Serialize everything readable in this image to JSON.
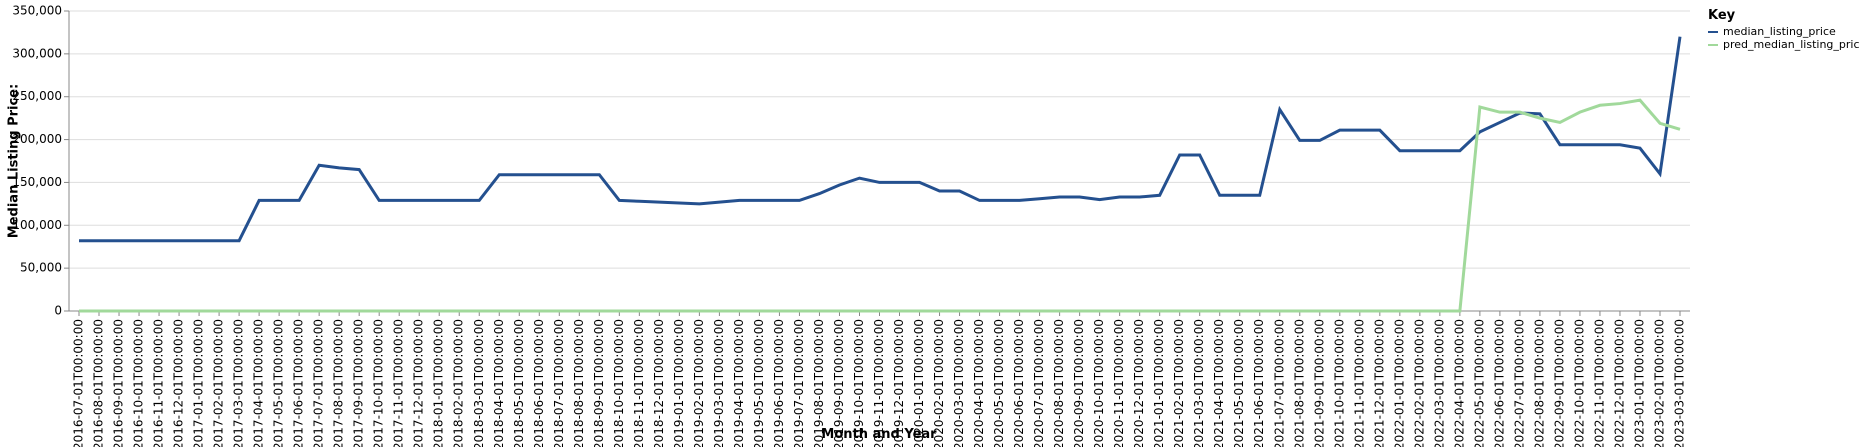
{
  "chart_data": {
    "type": "line",
    "x_label": "Month and Year",
    "y_label": "Median Listing Price:",
    "legend_title": "Key",
    "categories": [
      "2016-07-01T00:00:00",
      "2016-08-01T00:00:00",
      "2016-09-01T00:00:00",
      "2016-10-01T00:00:00",
      "2016-11-01T00:00:00",
      "2016-12-01T00:00:00",
      "2017-01-01T00:00:00",
      "2017-02-01T00:00:00",
      "2017-03-01T00:00:00",
      "2017-04-01T00:00:00",
      "2017-05-01T00:00:00",
      "2017-06-01T00:00:00",
      "2017-07-01T00:00:00",
      "2017-08-01T00:00:00",
      "2017-09-01T00:00:00",
      "2017-10-01T00:00:00",
      "2017-11-01T00:00:00",
      "2017-12-01T00:00:00",
      "2018-01-01T00:00:00",
      "2018-02-01T00:00:00",
      "2018-03-01T00:00:00",
      "2018-04-01T00:00:00",
      "2018-05-01T00:00:00",
      "2018-06-01T00:00:00",
      "2018-07-01T00:00:00",
      "2018-08-01T00:00:00",
      "2018-09-01T00:00:00",
      "2018-10-01T00:00:00",
      "2018-11-01T00:00:00",
      "2018-12-01T00:00:00",
      "2019-01-01T00:00:00",
      "2019-02-01T00:00:00",
      "2019-03-01T00:00:00",
      "2019-04-01T00:00:00",
      "2019-05-01T00:00:00",
      "2019-06-01T00:00:00",
      "2019-07-01T00:00:00",
      "2019-08-01T00:00:00",
      "2019-09-01T00:00:00",
      "2019-10-01T00:00:00",
      "2019-11-01T00:00:00",
      "2019-12-01T00:00:00",
      "2020-01-01T00:00:00",
      "2020-02-01T00:00:00",
      "2020-03-01T00:00:00",
      "2020-04-01T00:00:00",
      "2020-05-01T00:00:00",
      "2020-06-01T00:00:00",
      "2020-07-01T00:00:00",
      "2020-08-01T00:00:00",
      "2020-09-01T00:00:00",
      "2020-10-01T00:00:00",
      "2020-11-01T00:00:00",
      "2020-12-01T00:00:00",
      "2021-01-01T00:00:00",
      "2021-02-01T00:00:00",
      "2021-03-01T00:00:00",
      "2021-04-01T00:00:00",
      "2021-05-01T00:00:00",
      "2021-06-01T00:00:00",
      "2021-07-01T00:00:00",
      "2021-08-01T00:00:00",
      "2021-09-01T00:00:00",
      "2021-10-01T00:00:00",
      "2021-11-01T00:00:00",
      "2021-12-01T00:00:00",
      "2022-01-01T00:00:00",
      "2022-02-01T00:00:00",
      "2022-03-01T00:00:00",
      "2022-04-01T00:00:00",
      "2022-05-01T00:00:00",
      "2022-06-01T00:00:00",
      "2022-07-01T00:00:00",
      "2022-08-01T00:00:00",
      "2022-09-01T00:00:00",
      "2022-10-01T00:00:00",
      "2022-11-01T00:00:00",
      "2022-12-01T00:00:00",
      "2023-01-01T00:00:00",
      "2023-02-01T00:00:00",
      "2023-03-01T00:00:00"
    ],
    "series": [
      {
        "name": "median_listing_price",
        "color": "#24508f",
        "values": [
          82000,
          82000,
          82000,
          82000,
          82000,
          82000,
          82000,
          82000,
          82000,
          129000,
          129000,
          129000,
          170000,
          167000,
          165000,
          129000,
          129000,
          129000,
          129000,
          129000,
          129000,
          159000,
          159000,
          159000,
          159000,
          159000,
          159000,
          129000,
          128000,
          127000,
          126000,
          125000,
          127000,
          129000,
          129000,
          129000,
          129000,
          137000,
          147000,
          155000,
          150000,
          150000,
          150000,
          140000,
          140000,
          129000,
          129000,
          129000,
          131000,
          133000,
          133000,
          130000,
          133000,
          133000,
          135000,
          182000,
          182000,
          135000,
          135000,
          135000,
          235000,
          199000,
          199000,
          211000,
          211000,
          211000,
          187000,
          187000,
          187000,
          187000,
          209000,
          220000,
          231000,
          230000,
          194000,
          194000,
          194000,
          194000,
          190000,
          160000,
          320000
        ]
      },
      {
        "name": "pred_median_listing_price",
        "color": "#a1d99b",
        "values": [
          0,
          0,
          0,
          0,
          0,
          0,
          0,
          0,
          0,
          0,
          0,
          0,
          0,
          0,
          0,
          0,
          0,
          0,
          0,
          0,
          0,
          0,
          0,
          0,
          0,
          0,
          0,
          0,
          0,
          0,
          0,
          0,
          0,
          0,
          0,
          0,
          0,
          0,
          0,
          0,
          0,
          0,
          0,
          0,
          0,
          0,
          0,
          0,
          0,
          0,
          0,
          0,
          0,
          0,
          0,
          0,
          0,
          0,
          0,
          0,
          0,
          0,
          0,
          0,
          0,
          0,
          0,
          0,
          0,
          0,
          238000,
          232000,
          232000,
          225000,
          220000,
          232000,
          240000,
          242000,
          246000,
          219000,
          212000
        ]
      }
    ],
    "ylim": [
      0,
      350000
    ],
    "yticks": [
      0,
      {
        "value": 50000,
        "label": "50,000"
      },
      {
        "value": 100000,
        "label": "100,000"
      },
      {
        "value": 150000,
        "label": "150,000"
      },
      {
        "value": 200000,
        "label": "200,000"
      },
      {
        "value": 250000,
        "label": "250,000"
      },
      {
        "value": 300000,
        "label": "300,000"
      },
      {
        "value": 350000,
        "label": "350,000"
      }
    ],
    "grid": true,
    "legend": "right"
  }
}
